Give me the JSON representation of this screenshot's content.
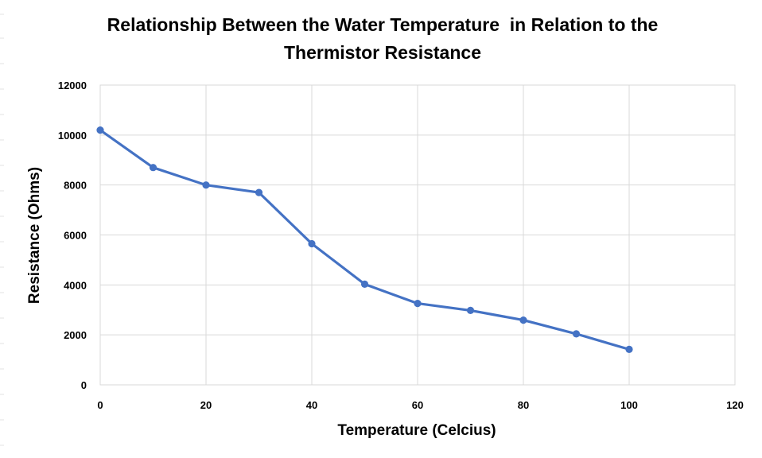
{
  "chart_data": {
    "type": "line",
    "title_lines": [
      "Relationship Between the Water Temperature  in Relation to the",
      "Thermistor Resistance"
    ],
    "xlabel": "Temperature (Celcius)",
    "ylabel": "Resistance (Ohms)",
    "xlim": [
      0,
      120
    ],
    "ylim": [
      0,
      12000
    ],
    "x_ticks": [
      0,
      20,
      40,
      60,
      80,
      100,
      120
    ],
    "y_ticks": [
      0,
      2000,
      4000,
      6000,
      8000,
      10000,
      12000
    ],
    "grid": true,
    "series": [
      {
        "x": [
          0,
          10,
          20,
          30,
          40,
          50,
          60,
          70,
          80,
          90,
          100
        ],
        "values": [
          10200,
          8700,
          8000,
          7700,
          5650,
          4030,
          3260,
          2980,
          2590,
          2040,
          1420
        ],
        "color": "#4472c4",
        "markers": true
      }
    ]
  }
}
